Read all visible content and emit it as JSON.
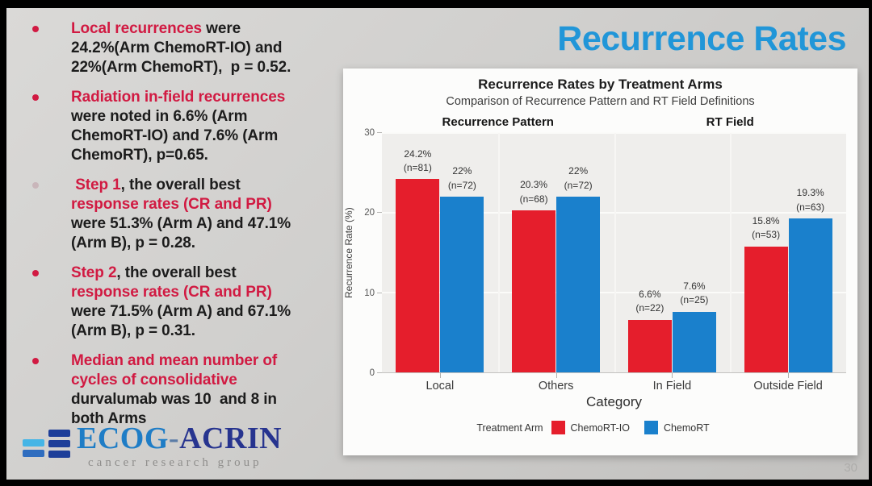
{
  "slide": {
    "title": "Recurrence Rates",
    "page_number": "30",
    "colors": {
      "title_blue": "#2196d8",
      "bullet_red": "#d11a42",
      "bar_red": "#e51e2c",
      "bar_blue": "#1a80cc"
    }
  },
  "bullets": [
    {
      "marker_color": "#d11a42",
      "segments": [
        {
          "text": "Local recurrences",
          "em": true
        },
        {
          "text": " were\n24.2%(Arm ChemoRT-IO) and\n22%(Arm ChemoRT),  p = 0.52.",
          "em": false
        }
      ]
    },
    {
      "marker_color": "#d11a42",
      "segments": [
        {
          "text": "Radiation in-field recurrences",
          "em": true
        },
        {
          "text": "\nwere noted in 6.6% (Arm\nChemoRT-IO) and 7.6% (Arm\nChemoRT), p=0.65.",
          "em": false
        }
      ]
    },
    {
      "marker_color": "#c9b6ba",
      "segments": [
        {
          "text": " Step 1",
          "em": true
        },
        {
          "text": ", the overall best\n",
          "em": false
        },
        {
          "text": "response rates (CR and PR)",
          "em": true
        },
        {
          "text": "\nwere 51.3% (Arm A) and 47.1%\n(Arm B), p = 0.28.",
          "em": false
        }
      ]
    },
    {
      "marker_color": "#d11a42",
      "segments": [
        {
          "text": "Step 2",
          "em": true
        },
        {
          "text": ", the overall best\n",
          "em": false
        },
        {
          "text": "response rates (CR and PR)",
          "em": true
        },
        {
          "text": "\nwere 71.5% (Arm A) and 67.1%\n(Arm B), p = 0.31.",
          "em": false
        }
      ]
    },
    {
      "marker_color": "#d11a42",
      "segments": [
        {
          "text": "Median and mean number of\ncycles of consolidative\n",
          "em": true
        },
        {
          "text": "durvalumab was 10  and 8 in\nboth Arms",
          "em": false
        }
      ]
    }
  ],
  "logo": {
    "word_part1": "ECOG",
    "dash": "-",
    "word_part2": "ACRIN",
    "tagline": "cancer research group"
  },
  "chart_data": {
    "type": "bar",
    "title": "Recurrence Rates by Treatment Arms",
    "subtitle": "Comparison of Recurrence Pattern and RT Field Definitions",
    "panel_headers": [
      "Recurrence Pattern",
      "RT Field"
    ],
    "categories": [
      "Local",
      "Others",
      "In Field",
      "Outside Field"
    ],
    "xlabel": "Category",
    "ylabel": "Recurrence Rate (%)",
    "ylim": [
      0,
      30
    ],
    "yticks": [
      0,
      10,
      20,
      30
    ],
    "grid": true,
    "legend_position": "bottom",
    "legend_title": "Treatment Arm",
    "series": [
      {
        "name": "ChemoRT-IO",
        "color": "#e51e2c",
        "values": [
          24.2,
          20.3,
          6.6,
          15.8
        ],
        "n": [
          81,
          68,
          22,
          53
        ]
      },
      {
        "name": "ChemoRT",
        "color": "#1a80cc",
        "values": [
          22,
          22,
          7.6,
          19.3
        ],
        "n": [
          72,
          72,
          25,
          63
        ]
      }
    ]
  }
}
